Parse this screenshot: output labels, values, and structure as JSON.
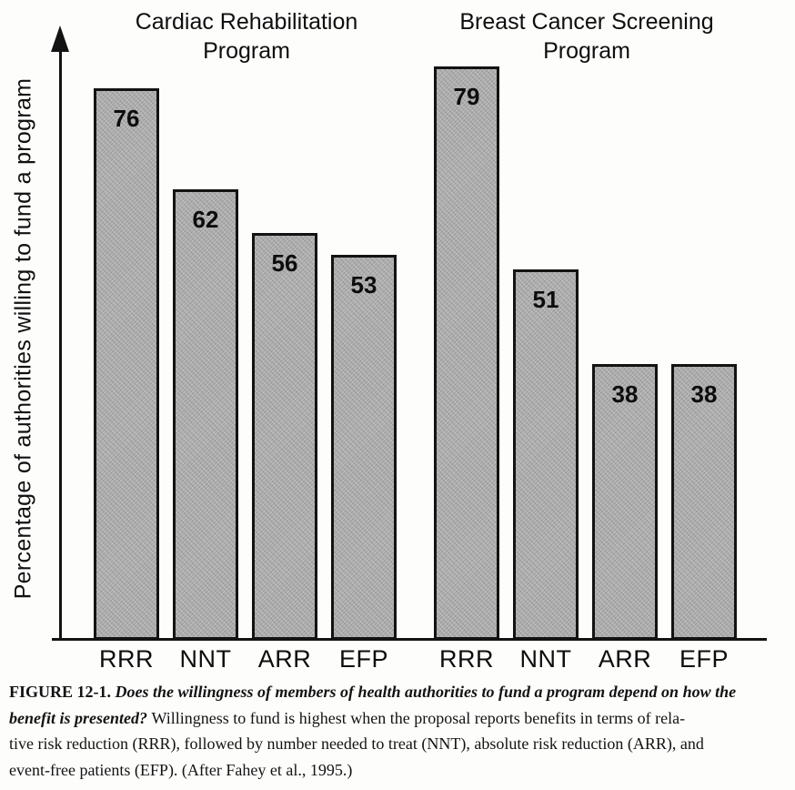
{
  "chart_data": {
    "type": "bar",
    "title": "",
    "ylabel": "Percentage of authorities willing to fund a program",
    "xlabel": "",
    "ylim": [
      0,
      100
    ],
    "grid": false,
    "legend": null,
    "bar_color": "#adadad",
    "bar_border_color": "#131313",
    "groups": [
      {
        "title": "Cardiac Rehabilitation Program",
        "categories": [
          "RRR",
          "NNT",
          "ARR",
          "EFP"
        ],
        "values": [
          76,
          62,
          56,
          53
        ]
      },
      {
        "title": "Breast Cancer Screening Program",
        "categories": [
          "RRR",
          "NNT",
          "ARR",
          "EFP"
        ],
        "values": [
          79,
          51,
          38,
          38
        ]
      }
    ]
  },
  "caption": {
    "figure_label": "FIGURE 12-1.",
    "lines": [
      [
        {
          "t": "FIGURE 12-1. ",
          "s": "b"
        },
        {
          "t": "Does the willingness of members of health authorities to fund a program depend on how the",
          "s": "bi"
        }
      ],
      [
        {
          "t": "benefit is presented? ",
          "s": "bi"
        },
        {
          "t": "Willingness to fund is highest when the proposal reports benefits in terms of rela-",
          "s": "r"
        }
      ],
      [
        {
          "t": "tive risk reduction (RRR), followed by number needed to treat (NNT), absolute risk reduction (ARR), and",
          "s": "r"
        }
      ],
      [
        {
          "t": "event-free patients (EFP). (After Fahey et al., 1995.)",
          "s": "r"
        }
      ]
    ]
  }
}
